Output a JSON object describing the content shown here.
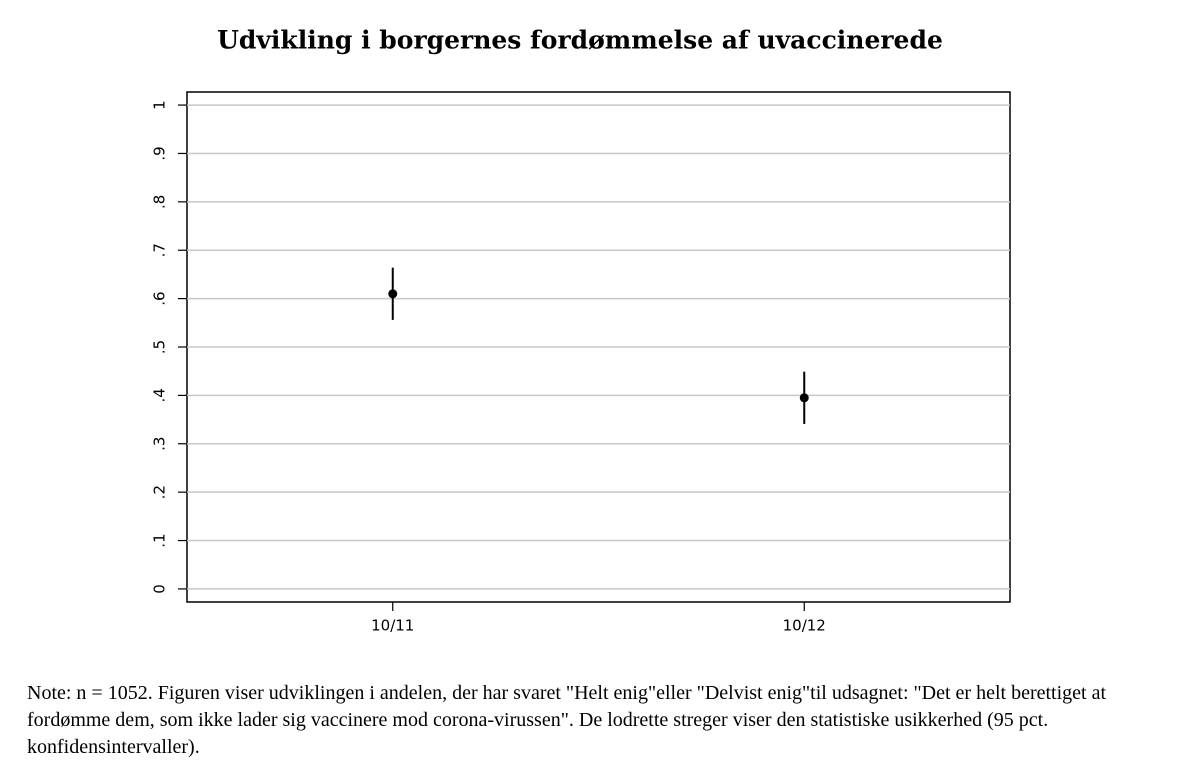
{
  "chart_data": {
    "type": "errorbar",
    "title": "Udvikling i borgernes fordømmelse af uvaccinerede",
    "categories": [
      "10/11",
      "10/12"
    ],
    "values": [
      0.61,
      0.395
    ],
    "error": [
      0.054,
      0.054
    ],
    "color": "#000000",
    "ylim": [
      -0.027,
      1.027
    ],
    "yticks": [
      0,
      {
        "value": 0.1,
        "label": ".1"
      },
      {
        "value": 0.2,
        "label": ".2"
      },
      {
        "value": 0.3,
        "label": ".3"
      },
      {
        "value": 0.4,
        "label": ".4"
      },
      {
        "value": 0.5,
        "label": ".5"
      },
      {
        "value": 0.6,
        "label": ".6"
      },
      {
        "value": 0.7,
        "label": ".7"
      },
      {
        "value": 0.8,
        "label": ".8"
      },
      {
        "value": 0.9,
        "label": ".9"
      },
      1
    ],
    "grid": true
  },
  "note": "Note: n = 1052. Figuren viser udviklingen i andelen, der har svaret \"Helt enig\"eller \"Delvist enig\"til udsagnet: \"Det er helt berettiget at fordømme dem, som ikke lader sig vaccinere mod corona-virussen\". De lodrette streger viser den statistiske usikkerhed (95 pct. konfidensintervaller)."
}
